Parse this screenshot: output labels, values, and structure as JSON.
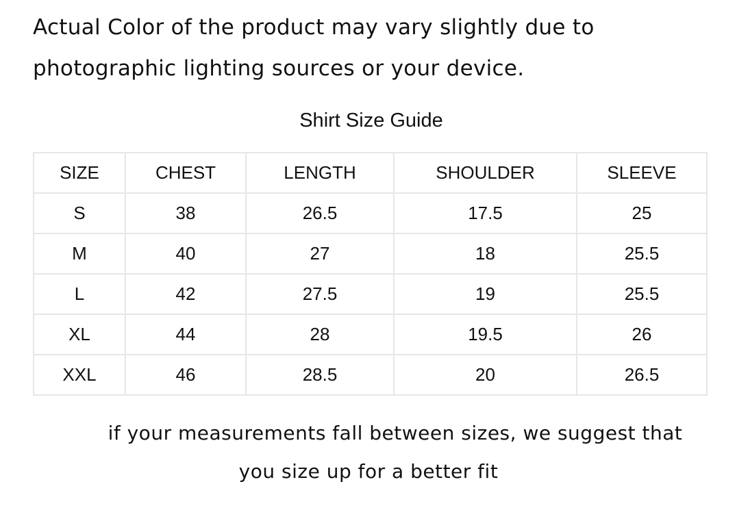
{
  "notice": {
    "line1": "Actual Color of the product may vary slightly due to",
    "line2": "photographic lighting sources or your device."
  },
  "title": "Shirt Size Guide",
  "table": {
    "headers": [
      "SIZE",
      "CHEST",
      "LENGTH",
      "SHOULDER",
      "SLEEVE"
    ],
    "rows": [
      [
        "S",
        "38",
        "26.5",
        "17.5",
        "25"
      ],
      [
        "M",
        "40",
        "27",
        "18",
        "25.5"
      ],
      [
        "L",
        "42",
        "27.5",
        "19",
        "25.5"
      ],
      [
        "XL",
        "44",
        "28",
        "19.5",
        "26"
      ],
      [
        "XXL",
        "46",
        "28.5",
        "20",
        "26.5"
      ]
    ]
  },
  "footer": {
    "line1": "if your measurements fall between sizes, we suggest that",
    "line2": "you size up for a better fit"
  },
  "colors": {
    "border": "#e6e6e6",
    "text": "#111111"
  }
}
